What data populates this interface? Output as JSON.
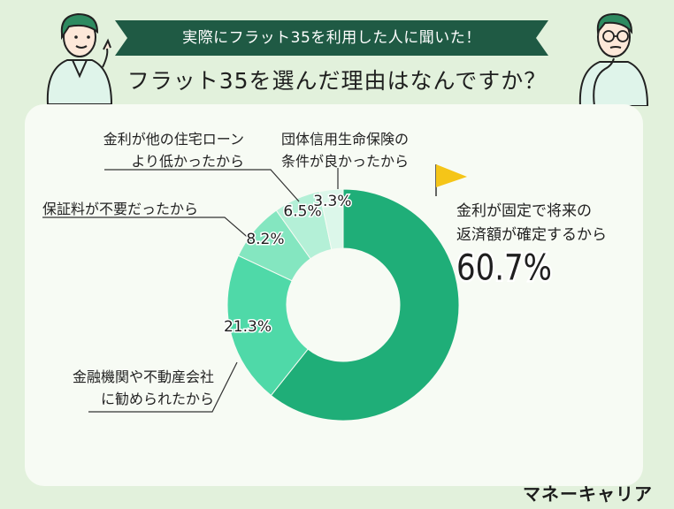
{
  "header": {
    "banner_text": "実際にフラット35を利用した人に聞いた！",
    "title": "フラット35を選んだ理由はなんですか？"
  },
  "colors": {
    "background": "#e2f1dc",
    "banner": "#1f5a44",
    "panel": "#f7fbf4",
    "flag": "#f5c518"
  },
  "chart_data": {
    "type": "pie",
    "donut": true,
    "slices": [
      {
        "name": "金利が固定で将来の返済額が確定するから",
        "value": 60.7,
        "label": "60.7%",
        "color": "#1fae78"
      },
      {
        "name": "金融機関や不動産会社に勧められたから",
        "value": 21.3,
        "label": "21.3%",
        "color": "#4fd9a8"
      },
      {
        "name": "保証料が不要だったから",
        "value": 8.2,
        "label": "8.2%",
        "color": "#84e6c0"
      },
      {
        "name": "金利が他の住宅ローンより低かったから",
        "value": 6.5,
        "label": "6.5%",
        "color": "#b4f0d7"
      },
      {
        "name": "団体信用生命保険の条件が良かったから",
        "value": 3.3,
        "label": "3.3%",
        "color": "#dcf7ea"
      }
    ]
  },
  "labels": {
    "main": [
      "金利が固定で将来の",
      "返済額が確定するから"
    ],
    "kinri_hikui": [
      "金利が他の住宅ローン",
      "より低かったから"
    ],
    "danshin": [
      "団体信用生命保険の",
      "条件が良かったから"
    ],
    "hoshoryo": [
      "保証料が不要だったから"
    ],
    "susume": [
      "金融機関や不動産会社",
      "に勧められたから"
    ]
  },
  "brand": {
    "logo": "マネーキャリア"
  }
}
